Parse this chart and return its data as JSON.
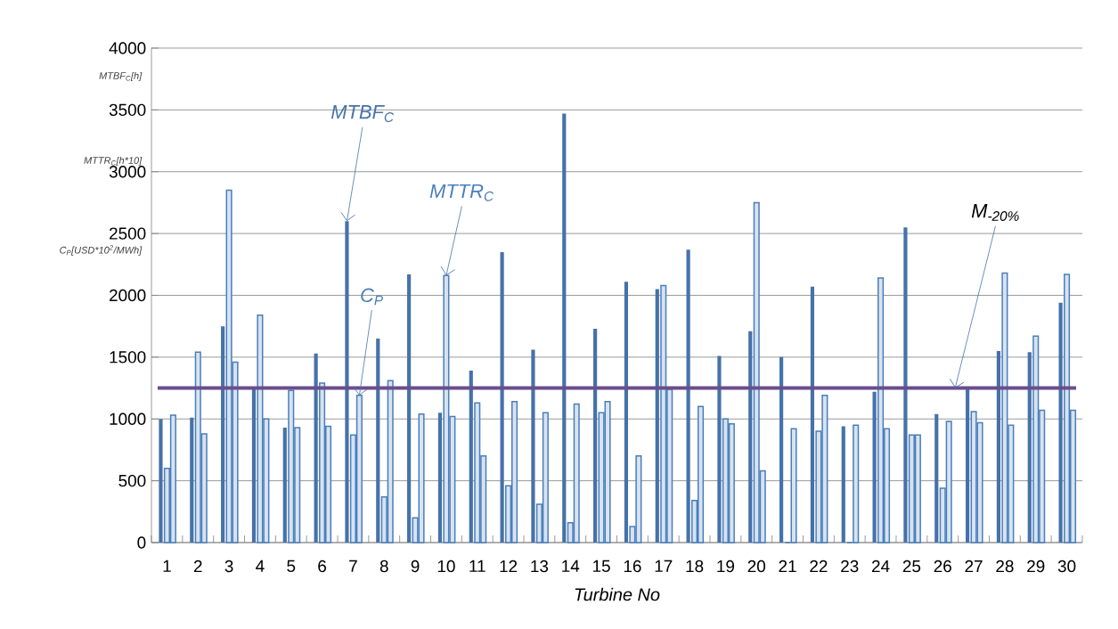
{
  "chart_data": {
    "type": "bar",
    "xlabel": "Turbine No",
    "categories": [
      "1",
      "2",
      "3",
      "4",
      "5",
      "6",
      "7",
      "8",
      "9",
      "10",
      "11",
      "12",
      "13",
      "14",
      "15",
      "16",
      "17",
      "18",
      "19",
      "20",
      "21",
      "22",
      "23",
      "24",
      "25",
      "26",
      "27",
      "28",
      "29",
      "30"
    ],
    "series": [
      {
        "name": "MTBF$_{C}$",
        "color": "#4672aa",
        "values": [
          1000,
          1010,
          1750,
          1250,
          930,
          1530,
          2600,
          1650,
          2170,
          1050,
          1390,
          2350,
          1560,
          3470,
          1730,
          2110,
          2050,
          2370,
          1510,
          1710,
          1500,
          2070,
          940,
          1220,
          2550,
          1040,
          1260,
          1550,
          1540,
          1940
        ]
      },
      {
        "name": "MTTR$_{C}$",
        "color": "#4a7ebb",
        "values": [
          600,
          1540,
          2850,
          1840,
          1230,
          1290,
          870,
          370,
          200,
          2160,
          1130,
          460,
          310,
          160,
          1050,
          130,
          2080,
          340,
          1000,
          2750,
          0,
          900,
          0,
          2140,
          870,
          440,
          1060,
          2180,
          1670,
          2170
        ]
      },
      {
        "name": "C$_{P}$",
        "color": "#4a7ebb",
        "values": [
          1030,
          880,
          1460,
          1000,
          930,
          940,
          1190,
          1310,
          1040,
          1020,
          700,
          1140,
          1050,
          1120,
          1140,
          700,
          1240,
          1100,
          960,
          580,
          920,
          1190,
          950,
          920,
          870,
          980,
          970,
          950,
          1070,
          1070
        ]
      }
    ],
    "ylim": [
      0,
      4000
    ],
    "yticks": [
      0,
      500,
      1000,
      1500,
      2000,
      2500,
      3000,
      3500,
      4000
    ],
    "grid": "y",
    "ref_lines": [
      {
        "axis": "y",
        "value": 1250,
        "label": "M$_{-20%}$",
        "color": "#6a4e8c"
      }
    ],
    "annotations": [
      "MTBF$_{C}$[h]",
      "MTTR$_{C}$[h*10]",
      "C$_{P}$[USD*10$^{2}$/MWh]"
    ]
  }
}
